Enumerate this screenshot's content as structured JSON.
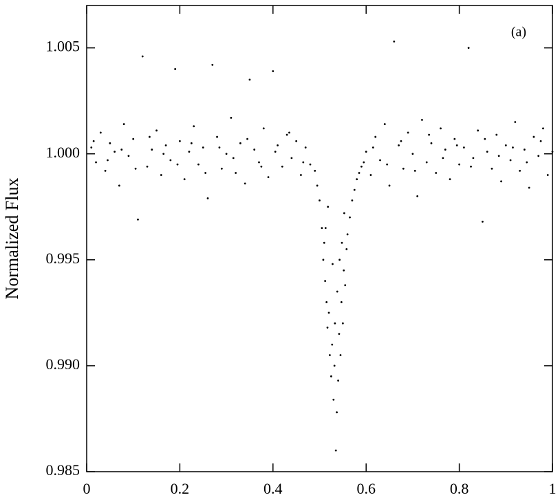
{
  "chart_data": {
    "type": "scatter",
    "ylabel": "Normalized Flux",
    "annotation": "(a)",
    "color": "#000000",
    "xlim": [
      0,
      1
    ],
    "xticks": [
      0,
      0.2,
      0.4,
      0.6,
      0.8,
      1
    ],
    "ylim": [
      0.985,
      1.007
    ],
    "yticks": [
      0.985,
      {
        "value": 0.99,
        "label": "0.990"
      },
      0.995,
      {
        "value": 1,
        "label": "1.000"
      },
      1.005
    ],
    "x": [
      0.01,
      0.02,
      0.03,
      0.04,
      0.05,
      0.06,
      0.07,
      0.08,
      0.09,
      0.1,
      0.11,
      0.12,
      0.13,
      0.14,
      0.15,
      0.16,
      0.17,
      0.18,
      0.19,
      0.2,
      0.21,
      0.22,
      0.23,
      0.24,
      0.25,
      0.26,
      0.27,
      0.28,
      0.29,
      0.3,
      0.31,
      0.32,
      0.33,
      0.34,
      0.35,
      0.36,
      0.37,
      0.38,
      0.39,
      0.4,
      0.41,
      0.42,
      0.43,
      0.44,
      0.45,
      0.46,
      0.47,
      0.48,
      0.49,
      0.495,
      0.5,
      0.505,
      0.508,
      0.51,
      0.512,
      0.515,
      0.517,
      0.52,
      0.522,
      0.525,
      0.527,
      0.53,
      0.532,
      0.535,
      0.537,
      0.54,
      0.542,
      0.545,
      0.547,
      0.55,
      0.552,
      0.555,
      0.558,
      0.56,
      0.565,
      0.57,
      0.575,
      0.58,
      0.585,
      0.59,
      0.595,
      0.513,
      0.528,
      0.538,
      0.548,
      0.518,
      0.553,
      0.533,
      0.543,
      0.6,
      0.61,
      0.62,
      0.63,
      0.64,
      0.65,
      0.66,
      0.67,
      0.68,
      0.69,
      0.7,
      0.71,
      0.72,
      0.73,
      0.74,
      0.75,
      0.76,
      0.77,
      0.78,
      0.79,
      0.8,
      0.81,
      0.82,
      0.83,
      0.84,
      0.85,
      0.86,
      0.87,
      0.88,
      0.89,
      0.9,
      0.91,
      0.92,
      0.93,
      0.94,
      0.95,
      0.96,
      0.97,
      0.98,
      0.99,
      1.0,
      0.015,
      0.045,
      0.075,
      0.105,
      0.135,
      0.165,
      0.195,
      0.225,
      0.255,
      0.285,
      0.315,
      0.345,
      0.375,
      0.405,
      0.435,
      0.465,
      0.615,
      0.645,
      0.675,
      0.705,
      0.735,
      0.765,
      0.795,
      0.825,
      0.855,
      0.885,
      0.915,
      0.945,
      0.975
    ],
    "values": [
      1.0003,
      0.9996,
      1.001,
      0.9992,
      1.0005,
      1.0001,
      0.9985,
      1.0014,
      0.9999,
      1.0007,
      0.9969,
      1.0046,
      0.9994,
      1.0002,
      1.0011,
      0.999,
      1.0004,
      0.9997,
      1.004,
      1.0006,
      0.9988,
      1.0001,
      1.0013,
      0.9995,
      1.0003,
      0.9979,
      1.0042,
      1.0008,
      0.9993,
      1.0,
      1.0017,
      0.9991,
      1.0005,
      0.9986,
      1.0035,
      1.0002,
      0.9996,
      1.0012,
      0.9989,
      1.0039,
      1.0004,
      0.9994,
      1.0009,
      0.9998,
      1.0006,
      0.999,
      1.0003,
      0.9995,
      0.9992,
      0.9985,
      0.9978,
      0.9965,
      0.995,
      0.9958,
      0.994,
      0.993,
      0.9918,
      0.9925,
      0.9905,
      0.9895,
      0.991,
      0.9884,
      0.99,
      0.986,
      0.9878,
      0.9893,
      0.9915,
      0.9905,
      0.993,
      0.992,
      0.9945,
      0.9938,
      0.9955,
      0.9962,
      0.997,
      0.9978,
      0.9983,
      0.9988,
      0.9991,
      0.9994,
      0.9996,
      0.9965,
      0.9948,
      0.9935,
      0.9958,
      0.9975,
      0.9972,
      0.992,
      0.995,
      1.0001,
      0.999,
      1.0008,
      0.9997,
      1.0014,
      0.9985,
      1.0053,
      1.0004,
      0.9993,
      1.001,
      1.0,
      0.998,
      1.0016,
      0.9996,
      1.0005,
      0.9991,
      1.0012,
      1.0002,
      0.9988,
      1.0007,
      0.9995,
      1.0003,
      1.005,
      0.9998,
      1.0011,
      0.9968,
      1.0001,
      0.9993,
      1.0009,
      0.9987,
      1.0004,
      0.9997,
      1.0015,
      0.9992,
      1.0002,
      0.9984,
      1.0008,
      0.9999,
      1.0012,
      0.999,
      1.0001,
      1.0006,
      0.9997,
      1.0002,
      0.9993,
      1.0008,
      1.0,
      0.9995,
      1.0005,
      0.9991,
      1.0003,
      0.9998,
      1.0007,
      0.9994,
      1.0001,
      1.001,
      0.9996,
      1.0003,
      0.9995,
      1.0006,
      0.9992,
      1.0009,
      0.9998,
      1.0004,
      0.9994,
      1.0007,
      0.9999,
      1.0003,
      0.9996,
      1.0006
    ]
  }
}
